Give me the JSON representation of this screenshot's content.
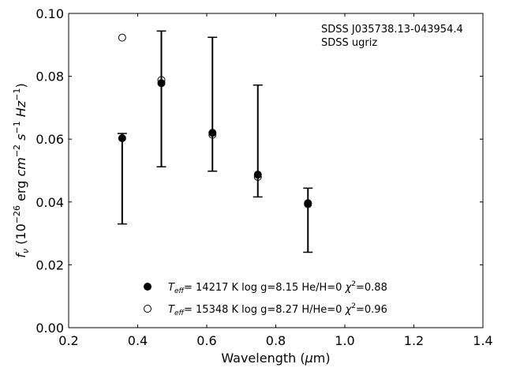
{
  "chart_data": {
    "type": "scatter",
    "annotation": [
      "SDSS J035738.13-043954.4",
      "SDSS ugriz"
    ],
    "xlabel": "Wavelength (μm)",
    "ylabel": "f_ν (10^-26 erg cm^-2 s^-1 Hz^-1)",
    "xlim": [
      0.2,
      1.4
    ],
    "ylim": [
      0.0,
      0.1
    ],
    "xticks": [
      "0.2",
      "0.4",
      "0.6",
      "0.8",
      "1.0",
      "1.2",
      "1.4"
    ],
    "yticks": [
      "0.00",
      "0.02",
      "0.04",
      "0.06",
      "0.08",
      "0.10"
    ],
    "grid": false,
    "legend_position": "bottom-center",
    "observed": {
      "x": [
        0.3551,
        0.4686,
        0.6166,
        0.748,
        0.8932
      ],
      "y": [
        0.0474,
        0.0728,
        0.0711,
        0.0594,
        0.0342
      ],
      "yerr": [
        0.0144,
        0.0216,
        0.0213,
        0.0178,
        0.0102
      ]
    },
    "series": [
      {
        "name": "T_eff= 14217 K  log g=8.15  He/H=0  χ²=0.88",
        "marker": "filled-circle",
        "x": [
          0.3551,
          0.4686,
          0.6166,
          0.748,
          0.8932
        ],
        "y": [
          0.0603,
          0.0778,
          0.062,
          0.0487,
          0.0396
        ]
      },
      {
        "name": "T_eff= 15348 K  log g=8.27  H/He=0  χ²=0.96",
        "marker": "open-circle",
        "x": [
          0.3551,
          0.4686,
          0.6166,
          0.748,
          0.8932
        ],
        "y": [
          0.0923,
          0.0788,
          0.0614,
          0.048,
          0.0393
        ]
      }
    ]
  }
}
